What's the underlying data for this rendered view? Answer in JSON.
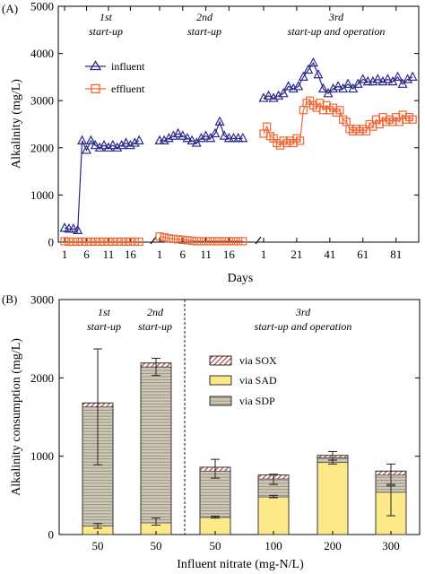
{
  "panel_a": {
    "tag": "(A)",
    "phase_labels": [
      [
        "1st",
        "start-up"
      ],
      [
        "2nd",
        "start-up"
      ],
      [
        "3rd",
        "start-up and operation"
      ]
    ],
    "legend": [
      "influent",
      "effluent"
    ]
  },
  "panel_b": {
    "tag": "(B)",
    "phase_labels": [
      [
        "1st",
        "start-up"
      ],
      [
        "2nd",
        "start-up"
      ],
      [
        "3rd",
        "start-up and operation"
      ]
    ],
    "legend": [
      "via SOX",
      "via SAD",
      "via SDP"
    ]
  },
  "colors": {
    "influent": "#2a2a8a",
    "effluent": "#ee6633",
    "sox": "#b03030",
    "sad": "#fde98a",
    "sdp": "#c8c2b0"
  },
  "chart_data": [
    {
      "type": "line",
      "ylabel": "Alkalinity (mg/L)",
      "xlabel": "Days",
      "ylim": [
        0,
        5000
      ],
      "yticks": [
        "0",
        "1000",
        "2000",
        "3000",
        "4000",
        "5000"
      ],
      "segments": [
        {
          "xlim": [
            1,
            20
          ],
          "xticks": [
            "1",
            "6",
            "11",
            "16"
          ],
          "tick_values": [
            1,
            6,
            11,
            16
          ]
        },
        {
          "xlim": [
            1,
            20
          ],
          "xticks": [
            "1",
            "6",
            "11",
            "16"
          ],
          "tick_values": [
            1,
            6,
            11,
            16
          ]
        },
        {
          "xlim": [
            1,
            92
          ],
          "xticks": [
            "1",
            "21",
            "41",
            "61",
            "81"
          ],
          "tick_values": [
            1,
            21,
            41,
            61,
            81
          ]
        }
      ],
      "series": [
        {
          "name": "influent",
          "marker": "triangle",
          "segments": [
            {
              "x": [
                1,
                2,
                3,
                4,
                5,
                6,
                7,
                8,
                9,
                10,
                11,
                12,
                13,
                14,
                15,
                16,
                17,
                18
              ],
              "y": [
                300,
                280,
                280,
                250,
                2150,
                1950,
                2150,
                2050,
                2000,
                2050,
                2000,
                2050,
                2000,
                2050,
                2100,
                2050,
                2100,
                2150
              ]
            },
            {
              "x": [
                1,
                2,
                3,
                4,
                5,
                6,
                7,
                8,
                9,
                10,
                11,
                12,
                13,
                14,
                15,
                16,
                17,
                18,
                19
              ],
              "y": [
                2150,
                2150,
                2200,
                2250,
                2300,
                2250,
                2200,
                2150,
                2100,
                2200,
                2250,
                2200,
                2300,
                2550,
                2250,
                2200,
                2200,
                2200,
                2200
              ]
            },
            {
              "x": [
                1,
                4,
                7,
                10,
                13,
                16,
                19,
                22,
                25,
                28,
                31,
                34,
                37,
                40,
                43,
                46,
                49,
                52,
                55,
                58,
                61,
                64,
                67,
                70,
                73,
                76,
                79,
                82,
                85,
                88,
                91
              ],
              "y": [
                3050,
                3100,
                3050,
                3100,
                3150,
                3300,
                3250,
                3300,
                3500,
                3650,
                3800,
                3550,
                3250,
                3150,
                3250,
                3300,
                3250,
                3350,
                3250,
                3350,
                3450,
                3400,
                3400,
                3450,
                3400,
                3450,
                3400,
                3500,
                3350,
                3450,
                3500
              ]
            }
          ]
        },
        {
          "name": "effluent",
          "marker": "square",
          "segments": [
            {
              "x": [
                1,
                2,
                3,
                4,
                5,
                6,
                7,
                8,
                9,
                10,
                11,
                12,
                13,
                14,
                15,
                16,
                17,
                18
              ],
              "y": [
                20,
                10,
                10,
                10,
                10,
                10,
                10,
                10,
                10,
                10,
                10,
                10,
                10,
                10,
                10,
                10,
                10,
                10
              ]
            },
            {
              "x": [
                1,
                2,
                3,
                4,
                5,
                6,
                7,
                8,
                9,
                10,
                11,
                12,
                13,
                14,
                15,
                16,
                17,
                18,
                19
              ],
              "y": [
                120,
                100,
                80,
                70,
                60,
                50,
                40,
                30,
                20,
                20,
                20,
                20,
                20,
                20,
                20,
                20,
                20,
                20,
                20
              ]
            },
            {
              "x": [
                1,
                3,
                5,
                7,
                9,
                11,
                13,
                15,
                17,
                19,
                21,
                23,
                25,
                27,
                29,
                31,
                33,
                35,
                37,
                39,
                41,
                43,
                45,
                47,
                49,
                51,
                53,
                55,
                57,
                59,
                61,
                63,
                65,
                67,
                69,
                71,
                73,
                75,
                77,
                79,
                81,
                83,
                85,
                87,
                89,
                91
              ],
              "y": [
                2300,
                2450,
                2250,
                2200,
                2100,
                2050,
                2150,
                2100,
                2150,
                2100,
                2200,
                2150,
                2800,
                2950,
                3000,
                2900,
                2850,
                2950,
                2800,
                2900,
                2800,
                2850,
                2750,
                2800,
                2600,
                2550,
                2400,
                2350,
                2400,
                2350,
                2400,
                2350,
                2500,
                2450,
                2600,
                2500,
                2650,
                2550,
                2600,
                2550,
                2650,
                2550,
                2700,
                2600,
                2650,
                2600
              ]
            }
          ]
        }
      ]
    },
    {
      "type": "bar",
      "stacked": true,
      "xlabel": "Influent nitrate (mg-N/L)",
      "ylabel": "Alkalinity consumption (mg/L)",
      "ylim": [
        0,
        3000
      ],
      "yticks": [
        "0",
        "1000",
        "2000",
        "3000"
      ],
      "categories": [
        "50",
        "50",
        "50",
        "100",
        "200",
        "300"
      ],
      "series": [
        {
          "name": "via SAD",
          "values": [
            110,
            150,
            220,
            480,
            920,
            540
          ],
          "error": [
            [
              80,
              140
            ],
            [
              120,
              210
            ],
            [
              210,
              235
            ],
            [
              470,
              500
            ],
            [
              900,
              950
            ],
            [
              240,
              620
            ]
          ]
        },
        {
          "name": "via SDP",
          "values": [
            1520,
            1990,
            590,
            230,
            60,
            220
          ],
          "error": [
            [
              890,
              2370
            ],
            [
              2030,
              2250
            ],
            [
              720,
              960
            ],
            [
              640,
              770
            ],
            [
              950,
              1060
            ],
            [
              640,
              900
            ]
          ]
        },
        {
          "name": "via SOX",
          "values": [
            50,
            50,
            50,
            50,
            30,
            50
          ]
        }
      ]
    }
  ]
}
